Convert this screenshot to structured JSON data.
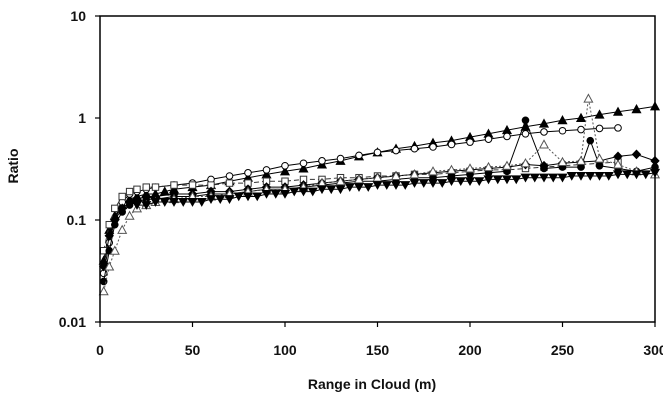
{
  "chart_data": {
    "type": "scatter",
    "title": "",
    "xlabel": "Range in Cloud (m)",
    "ylabel": "Ratio",
    "xlim": [
      0,
      300
    ],
    "ylim": [
      0.01,
      10
    ],
    "yscale": "log",
    "grid": false,
    "legend": "none",
    "x_ticks": [
      0,
      50,
      100,
      150,
      200,
      250,
      300
    ],
    "x_tick_labels": [
      "0",
      "50",
      "100",
      "150",
      "200",
      "250",
      "300"
    ],
    "y_ticks": [
      0.01,
      0.1,
      1,
      10
    ],
    "y_tick_labels": [
      "0.01",
      "0.1",
      "1",
      "10"
    ],
    "series": [
      {
        "marker": "triangle-filled",
        "line": "solid",
        "color": "#000000",
        "x": [
          2,
          5,
          8,
          12,
          16,
          20,
          25,
          30,
          35,
          40,
          50,
          60,
          70,
          80,
          90,
          100,
          110,
          120,
          130,
          140,
          150,
          160,
          170,
          180,
          190,
          200,
          210,
          220,
          230,
          240,
          250,
          260,
          270,
          280,
          290,
          300
        ],
        "y": [
          0.04,
          0.08,
          0.11,
          0.14,
          0.16,
          0.17,
          0.18,
          0.18,
          0.19,
          0.2,
          0.21,
          0.22,
          0.24,
          0.26,
          0.28,
          0.3,
          0.32,
          0.35,
          0.38,
          0.42,
          0.46,
          0.5,
          0.53,
          0.57,
          0.6,
          0.65,
          0.7,
          0.76,
          0.82,
          0.88,
          0.95,
          1.0,
          1.08,
          1.15,
          1.22,
          1.3
        ]
      },
      {
        "marker": "circle-open",
        "line": "solid",
        "color": "#000000",
        "x": [
          2,
          5,
          8,
          12,
          16,
          20,
          25,
          30,
          40,
          50,
          60,
          70,
          80,
          90,
          100,
          110,
          120,
          130,
          140,
          150,
          160,
          170,
          180,
          190,
          200,
          210,
          220,
          230,
          240,
          250,
          260,
          270,
          280
        ],
        "y": [
          0.03,
          0.06,
          0.1,
          0.15,
          0.18,
          0.19,
          0.2,
          0.21,
          0.22,
          0.23,
          0.25,
          0.27,
          0.29,
          0.31,
          0.34,
          0.36,
          0.38,
          0.4,
          0.43,
          0.46,
          0.48,
          0.5,
          0.52,
          0.55,
          0.58,
          0.62,
          0.66,
          0.7,
          0.73,
          0.75,
          0.77,
          0.79,
          0.8
        ]
      },
      {
        "marker": "square-open",
        "line": "dashed",
        "color": "#333333",
        "x": [
          2,
          5,
          8,
          12,
          16,
          20,
          25,
          30,
          40,
          50,
          60,
          70,
          80,
          90,
          100,
          110,
          120,
          130,
          140,
          150,
          160,
          170,
          180,
          190,
          200,
          210,
          220,
          230,
          240,
          250,
          260,
          270,
          280
        ],
        "y": [
          0.05,
          0.09,
          0.13,
          0.17,
          0.19,
          0.2,
          0.21,
          0.21,
          0.22,
          0.22,
          0.22,
          0.23,
          0.23,
          0.24,
          0.24,
          0.25,
          0.25,
          0.26,
          0.26,
          0.27,
          0.27,
          0.28,
          0.28,
          0.29,
          0.3,
          0.31,
          0.31,
          0.32,
          0.33,
          0.34,
          0.35,
          0.36,
          0.37
        ]
      },
      {
        "marker": "diamond-filled",
        "line": "solid",
        "color": "#000000",
        "x": [
          2,
          5,
          8,
          12,
          16,
          20,
          25,
          30,
          40,
          50,
          60,
          70,
          80,
          90,
          100,
          110,
          120,
          130,
          140,
          150,
          160,
          170,
          180,
          190,
          200,
          210,
          220,
          230,
          240,
          250,
          260,
          270,
          280,
          290,
          300
        ],
        "y": [
          0.035,
          0.07,
          0.1,
          0.13,
          0.15,
          0.16,
          0.17,
          0.17,
          0.18,
          0.18,
          0.19,
          0.19,
          0.2,
          0.21,
          0.21,
          0.22,
          0.23,
          0.24,
          0.25,
          0.26,
          0.27,
          0.28,
          0.29,
          0.3,
          0.31,
          0.32,
          0.33,
          0.35,
          0.34,
          0.36,
          0.37,
          0.38,
          0.42,
          0.44,
          0.38
        ]
      },
      {
        "marker": "circle-filled",
        "line": "solid",
        "color": "#000000",
        "x": [
          2,
          5,
          8,
          12,
          16,
          20,
          25,
          30,
          40,
          50,
          60,
          70,
          80,
          90,
          100,
          110,
          120,
          130,
          140,
          150,
          160,
          170,
          180,
          190,
          200,
          210,
          220,
          230,
          240,
          250,
          260,
          265,
          270,
          280,
          290,
          300
        ],
        "y": [
          0.025,
          0.05,
          0.09,
          0.12,
          0.14,
          0.15,
          0.16,
          0.16,
          0.17,
          0.17,
          0.18,
          0.18,
          0.19,
          0.2,
          0.2,
          0.21,
          0.22,
          0.23,
          0.24,
          0.24,
          0.25,
          0.26,
          0.26,
          0.27,
          0.28,
          0.29,
          0.3,
          0.95,
          0.32,
          0.33,
          0.33,
          0.6,
          0.34,
          0.32,
          0.3,
          0.33
        ]
      },
      {
        "marker": "triangle-open",
        "line": "dotted",
        "color": "#555555",
        "x": [
          2,
          5,
          8,
          12,
          16,
          20,
          25,
          30,
          40,
          50,
          60,
          70,
          80,
          90,
          100,
          110,
          120,
          130,
          140,
          150,
          160,
          170,
          180,
          190,
          200,
          210,
          220,
          230,
          240,
          250,
          260,
          264,
          270,
          280,
          290,
          300
        ],
        "y": [
          0.02,
          0.035,
          0.05,
          0.08,
          0.11,
          0.13,
          0.14,
          0.15,
          0.16,
          0.17,
          0.17,
          0.18,
          0.19,
          0.2,
          0.2,
          0.21,
          0.23,
          0.24,
          0.25,
          0.26,
          0.27,
          0.28,
          0.3,
          0.31,
          0.32,
          0.33,
          0.34,
          0.36,
          0.55,
          0.37,
          0.38,
          1.55,
          0.4,
          0.35,
          0.3,
          0.28
        ]
      },
      {
        "marker": "triangle-down-filled",
        "line": "solid",
        "color": "#000000",
        "x": [
          20,
          25,
          30,
          35,
          40,
          45,
          50,
          55,
          60,
          65,
          70,
          75,
          80,
          85,
          90,
          95,
          100,
          105,
          110,
          115,
          120,
          125,
          130,
          135,
          140,
          145,
          150,
          155,
          160,
          165,
          170,
          175,
          180,
          185,
          190,
          195,
          200,
          205,
          210,
          215,
          220,
          225,
          230,
          235,
          240,
          245,
          250,
          255,
          260,
          265,
          270,
          275,
          280,
          285,
          290,
          295,
          300
        ],
        "y": [
          0.14,
          0.14,
          0.15,
          0.15,
          0.15,
          0.15,
          0.15,
          0.15,
          0.16,
          0.16,
          0.16,
          0.17,
          0.17,
          0.17,
          0.18,
          0.18,
          0.18,
          0.19,
          0.19,
          0.19,
          0.2,
          0.2,
          0.2,
          0.21,
          0.21,
          0.21,
          0.22,
          0.22,
          0.22,
          0.22,
          0.23,
          0.23,
          0.23,
          0.23,
          0.24,
          0.24,
          0.24,
          0.24,
          0.25,
          0.25,
          0.25,
          0.25,
          0.26,
          0.26,
          0.26,
          0.26,
          0.26,
          0.27,
          0.27,
          0.27,
          0.27,
          0.27,
          0.28,
          0.28,
          0.28,
          0.28,
          0.29
        ]
      }
    ]
  }
}
